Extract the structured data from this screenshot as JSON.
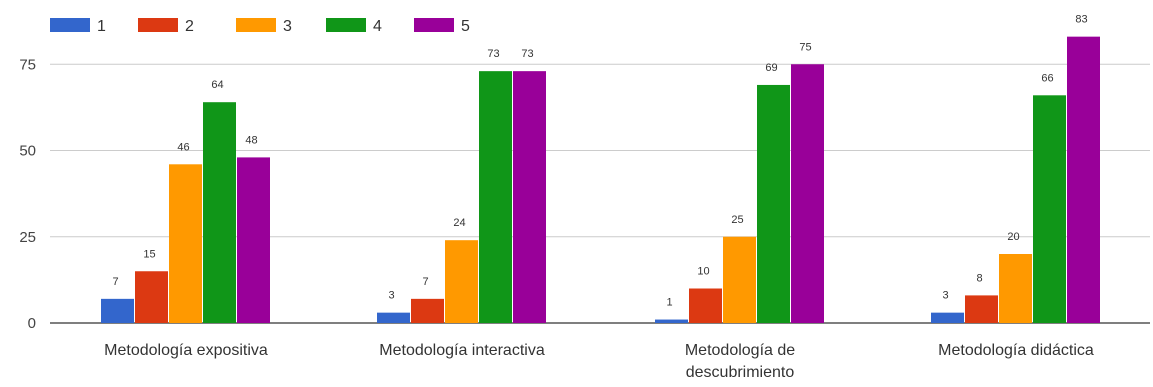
{
  "chart_data": {
    "type": "bar",
    "categories": [
      [
        "Metodología expositiva"
      ],
      [
        "Metodología interactiva"
      ],
      [
        "Metodología de",
        "descubrimiento"
      ],
      [
        "Metodología didáctica"
      ]
    ],
    "series": [
      {
        "name": "1",
        "color": "#3366cc",
        "values": [
          7,
          3,
          1,
          3
        ]
      },
      {
        "name": "2",
        "color": "#dc3912",
        "values": [
          15,
          7,
          10,
          8
        ]
      },
      {
        "name": "3",
        "color": "#ff9900",
        "values": [
          46,
          24,
          25,
          20
        ]
      },
      {
        "name": "4",
        "color": "#109618",
        "values": [
          64,
          73,
          69,
          66
        ]
      },
      {
        "name": "5",
        "color": "#990099",
        "values": [
          48,
          73,
          75,
          83
        ]
      }
    ],
    "yticks": [
      0,
      25,
      50,
      75
    ],
    "ylim": [
      0,
      90
    ],
    "grid": true,
    "legend_position": "top-left",
    "title": "",
    "xlabel": "",
    "ylabel": ""
  }
}
